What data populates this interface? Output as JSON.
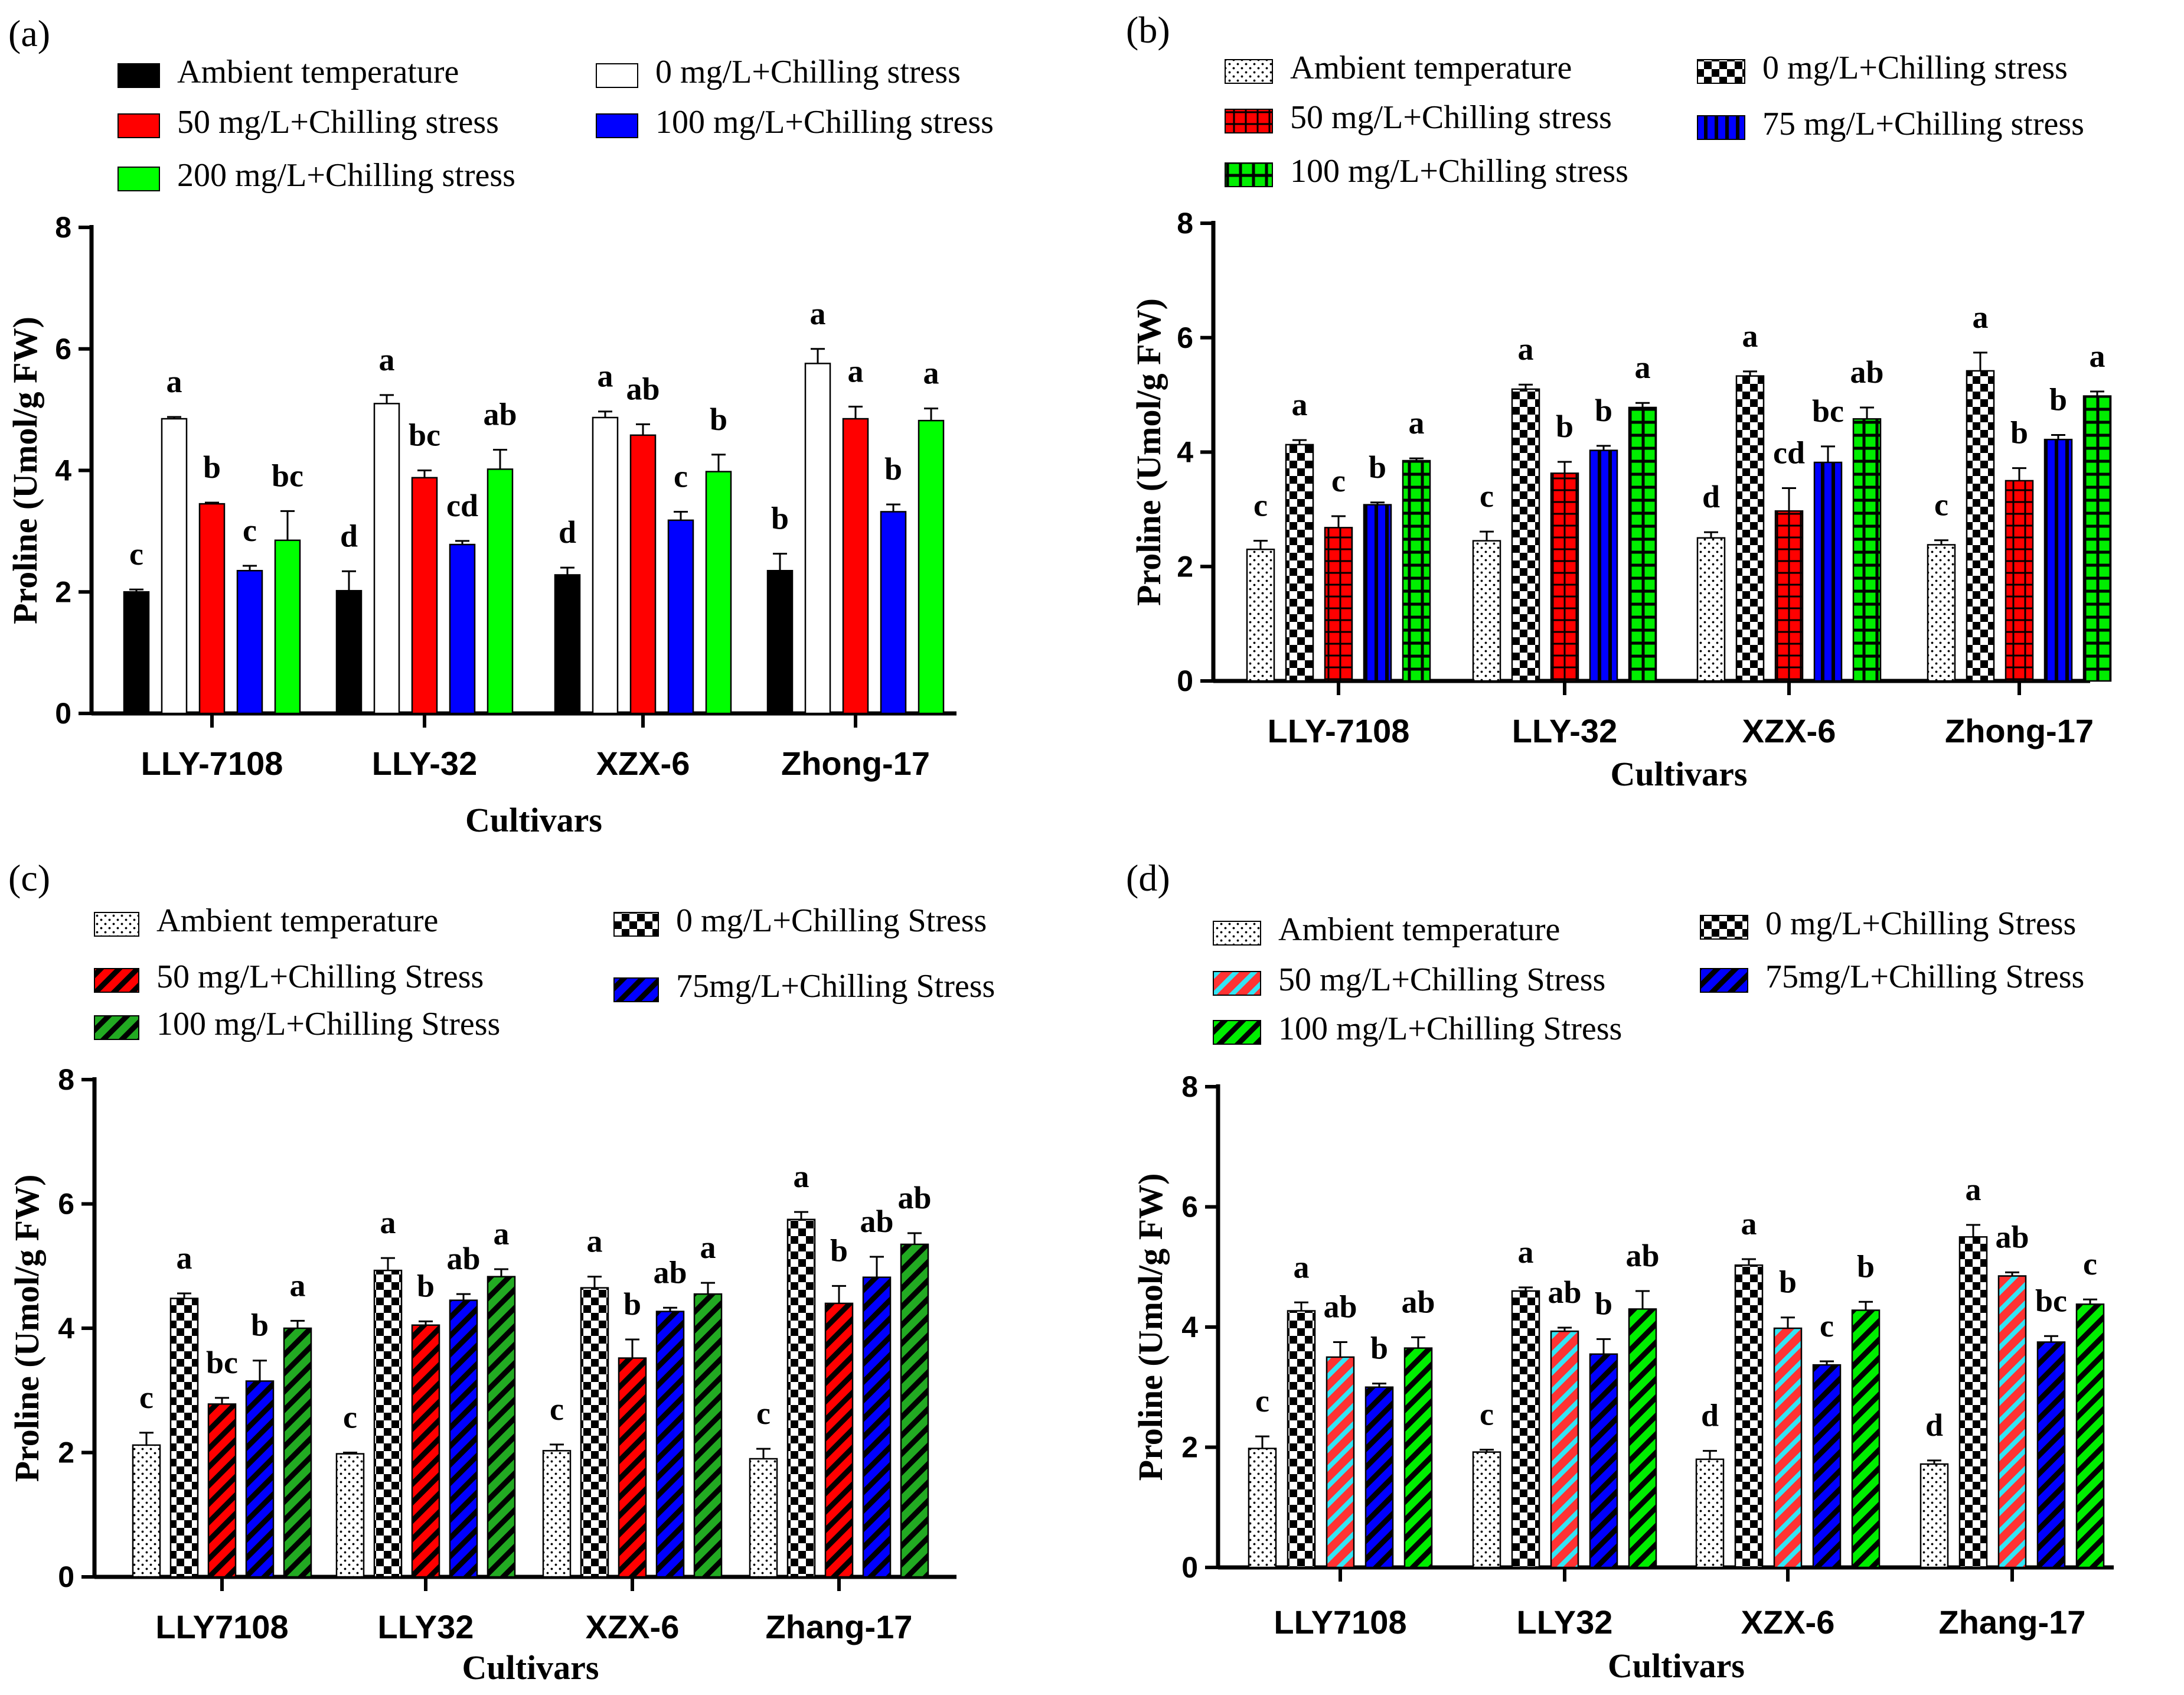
{
  "chart_data": [
    {
      "panel": "(a)",
      "type": "bar",
      "categories": [
        "LLY-7108",
        "LLY-32",
        "XZX-6",
        "Zhong-17"
      ],
      "xlabel": "Cultivars",
      "ylabel": "Proline (Umol/g FW)",
      "ylim": [
        0,
        8
      ],
      "yticks": [
        "0",
        "2",
        "4",
        "6",
        "8"
      ],
      "series": [
        {
          "name": "Ambient temperature",
          "color": "#000000",
          "pattern": "solid",
          "values": [
            2.0,
            2.02,
            2.28,
            2.35
          ],
          "errors": [
            0.04,
            0.32,
            0.12,
            0.28
          ],
          "letters": [
            "c",
            "d",
            "d",
            "b"
          ]
        },
        {
          "name": "0 mg/L+Chilling stress",
          "color": "#ffffff",
          "pattern": "solid",
          "values": [
            4.85,
            5.1,
            4.87,
            5.76
          ],
          "errors": [
            0.03,
            0.14,
            0.1,
            0.24
          ],
          "letters": [
            "a",
            "a",
            "a",
            "a"
          ]
        },
        {
          "name": "50 mg/L+Chilling stress",
          "color": "#ff0000",
          "pattern": "solid",
          "values": [
            3.45,
            3.88,
            4.58,
            4.85
          ],
          "errors": [
            0.02,
            0.12,
            0.18,
            0.2
          ],
          "letters": [
            "b",
            "bc",
            "ab",
            "a"
          ]
        },
        {
          "name": "100 mg/L+Chilling stress",
          "color": "#0000ff",
          "pattern": "solid",
          "values": [
            2.35,
            2.78,
            3.18,
            3.32
          ],
          "errors": [
            0.08,
            0.06,
            0.14,
            0.12
          ],
          "letters": [
            "c",
            "cd",
            "c",
            "b"
          ]
        },
        {
          "name": "200 mg/L+Chilling stress",
          "color": "#00ff00",
          "pattern": "solid",
          "values": [
            2.85,
            4.02,
            3.98,
            4.82
          ],
          "errors": [
            0.48,
            0.32,
            0.28,
            0.2
          ],
          "letters": [
            "bc",
            "ab",
            "b",
            "a"
          ]
        }
      ]
    },
    {
      "panel": "(b)",
      "type": "bar",
      "categories": [
        "LLY-7108",
        "LLY-32",
        "XZX-6",
        "Zhong-17"
      ],
      "xlabel": "Cultivars",
      "ylabel": "Proline (Umol/g FW)",
      "ylim": [
        0,
        8
      ],
      "yticks": [
        "0",
        "2",
        "4",
        "6",
        "8"
      ],
      "series": [
        {
          "name": "Ambient temperature",
          "color": "#ffffff",
          "pattern": "dots",
          "values": [
            2.3,
            2.45,
            2.5,
            2.38
          ],
          "errors": [
            0.15,
            0.16,
            0.1,
            0.08
          ],
          "letters": [
            "c",
            "c",
            "d",
            "c"
          ]
        },
        {
          "name": "0 mg/L+Chilling stress",
          "color": "#000000",
          "pattern": "checker",
          "values": [
            4.13,
            5.1,
            5.33,
            5.42
          ],
          "errors": [
            0.08,
            0.08,
            0.08,
            0.32
          ],
          "letters": [
            "a",
            "a",
            "a",
            "a"
          ]
        },
        {
          "name": "50 mg/L+Chilling stress",
          "color": "#ff0000",
          "pattern": "grid",
          "values": [
            2.68,
            3.63,
            2.97,
            3.5
          ],
          "errors": [
            0.2,
            0.2,
            0.4,
            0.22
          ],
          "letters": [
            "c",
            "b",
            "cd",
            "b"
          ]
        },
        {
          "name": "75 mg/L+Chilling stress",
          "color": "#0000ff",
          "pattern": "vstripe",
          "values": [
            3.08,
            4.03,
            3.82,
            4.22
          ],
          "errors": [
            0.04,
            0.08,
            0.28,
            0.08
          ],
          "letters": [
            "b",
            "b",
            "bc",
            "b"
          ]
        },
        {
          "name": "100 mg/L+Chilling stress",
          "color": "#00ee00",
          "pattern": "grid",
          "values": [
            3.85,
            4.78,
            4.58,
            4.98
          ],
          "errors": [
            0.04,
            0.08,
            0.2,
            0.08
          ],
          "letters": [
            "a",
            "a",
            "ab",
            "a"
          ]
        }
      ]
    },
    {
      "panel": "(c)",
      "type": "bar",
      "categories": [
        "LLY7108",
        "LLY32",
        "XZX-6",
        "Zhang-17"
      ],
      "xlabel": "Cultivars",
      "ylabel": "Proline (Umol/g FW)",
      "ylim": [
        0,
        8
      ],
      "yticks": [
        "0",
        "2",
        "4",
        "6",
        "8"
      ],
      "series": [
        {
          "name": "Ambient temperature",
          "color": "#ffffff",
          "pattern": "dots",
          "values": [
            2.12,
            1.98,
            2.03,
            1.9
          ],
          "errors": [
            0.2,
            0.02,
            0.1,
            0.16
          ],
          "letters": [
            "c",
            "c",
            "c",
            "c"
          ]
        },
        {
          "name": "0 mg/L+Chilling Stress",
          "color": "#000000",
          "pattern": "checker",
          "values": [
            4.48,
            4.93,
            4.65,
            5.75
          ],
          "errors": [
            0.08,
            0.2,
            0.18,
            0.12
          ],
          "letters": [
            "a",
            "a",
            "a",
            "a"
          ]
        },
        {
          "name": "50 mg/L+Chilling Stress",
          "color": "#ff0000",
          "pattern": "diag",
          "values": [
            2.78,
            4.05,
            3.52,
            4.4
          ],
          "errors": [
            0.1,
            0.06,
            0.3,
            0.28
          ],
          "letters": [
            "bc",
            "b",
            "b",
            "b"
          ]
        },
        {
          "name": "75mg/L+Chilling Stress",
          "color": "#0000ff",
          "pattern": "diag",
          "values": [
            3.15,
            4.45,
            4.27,
            4.82
          ],
          "errors": [
            0.33,
            0.1,
            0.06,
            0.33
          ],
          "letters": [
            "b",
            "ab",
            "ab",
            "ab"
          ]
        },
        {
          "name": "100 mg/L+Chilling Stress",
          "color": "#22aa22",
          "pattern": "diag",
          "values": [
            4.0,
            4.83,
            4.55,
            5.35
          ],
          "errors": [
            0.12,
            0.12,
            0.18,
            0.18
          ],
          "letters": [
            "a",
            "a",
            "a",
            "ab"
          ]
        }
      ]
    },
    {
      "panel": "(d)",
      "type": "bar",
      "categories": [
        "LLY7108",
        "LLY32",
        "XZX-6",
        "Zhang-17"
      ],
      "xlabel": "Cultivars",
      "ylabel": "Proline (Umol/g FW)",
      "ylim": [
        0,
        8
      ],
      "yticks": [
        "0",
        "2",
        "4",
        "6",
        "8"
      ],
      "series": [
        {
          "name": "Ambient temperature",
          "color": "#ffffff",
          "pattern": "dots",
          "values": [
            1.98,
            1.92,
            1.8,
            1.72
          ],
          "errors": [
            0.2,
            0.04,
            0.14,
            0.06
          ],
          "letters": [
            "c",
            "c",
            "d",
            "d"
          ]
        },
        {
          "name": "0 mg/L+Chilling Stress",
          "color": "#000000",
          "pattern": "checker",
          "values": [
            4.27,
            4.6,
            5.03,
            5.5
          ],
          "errors": [
            0.14,
            0.06,
            0.1,
            0.2
          ],
          "letters": [
            "a",
            "a",
            "a",
            "a"
          ]
        },
        {
          "name": "50 mg/L+Chilling Stress",
          "color": "#ff3333",
          "pattern": "diag-cyan",
          "values": [
            3.5,
            3.93,
            3.98,
            4.85
          ],
          "errors": [
            0.25,
            0.06,
            0.18,
            0.06
          ],
          "letters": [
            "ab",
            "ab",
            "b",
            "ab"
          ]
        },
        {
          "name": "75mg/L+Chilling Stress",
          "color": "#0000ff",
          "pattern": "diag",
          "values": [
            3.0,
            3.55,
            3.37,
            3.75
          ],
          "errors": [
            0.06,
            0.25,
            0.06,
            0.1
          ],
          "letters": [
            "b",
            "b",
            "c",
            "bc"
          ]
        },
        {
          "name": "100 mg/L+Chilling Stress",
          "color": "#00ee00",
          "pattern": "diag",
          "values": [
            3.65,
            4.3,
            4.28,
            4.38
          ],
          "errors": [
            0.18,
            0.3,
            0.14,
            0.08
          ],
          "letters": [
            "ab",
            "ab",
            "b",
            "c"
          ]
        }
      ]
    }
  ]
}
